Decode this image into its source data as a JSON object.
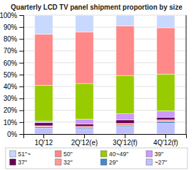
{
  "chart_data": {
    "type": "bar",
    "stacked": true,
    "title": "Quarterly LCD TV panel shipment proportion by size",
    "categories": [
      "1Q'12",
      "2Q'12(e)",
      "3Q'12(f)",
      "4Q'12(f)"
    ],
    "series": [
      {
        "name": "~27\"",
        "color": "#c0c0ff",
        "values": [
          5.0,
          4.0,
          6.0,
          9.0
        ]
      },
      {
        "name": "29\"",
        "color": "#4488cc",
        "values": [
          1.0,
          1.0,
          1.0,
          1.5
        ]
      },
      {
        "name": "32\"",
        "color": "#ff9999",
        "values": [
          1.0,
          1.5,
          2.0,
          1.5
        ]
      },
      {
        "name": "37\"",
        "color": "#660055",
        "values": [
          2.5,
          2.0,
          3.0,
          2.0
        ]
      },
      {
        "name": "39\"",
        "color": "#cc99ff",
        "values": [
          1.5,
          4.0,
          5.0,
          5.5
        ]
      },
      {
        "name": "40~49\"",
        "color": "#99cc00",
        "values": [
          30.0,
          30.0,
          32.0,
          31.0
        ]
      },
      {
        "name": "50\"",
        "color": "#ff8888",
        "values": [
          43.0,
          43.5,
          42.0,
          39.0
        ]
      },
      {
        "name": "51\"~",
        "color": "#c8d8ff",
        "values": [
          16.0,
          14.0,
          9.0,
          10.5
        ]
      }
    ],
    "ylim": [
      0,
      100
    ],
    "yticks": [
      {
        "value": 0,
        "label": "0%"
      },
      {
        "value": 10,
        "label": "10%"
      },
      {
        "value": 20,
        "label": "20%"
      },
      {
        "value": 30,
        "label": "30%"
      },
      {
        "value": 40,
        "label": "40%"
      },
      {
        "value": 50,
        "label": "50%"
      },
      {
        "value": 60,
        "label": "60%"
      },
      {
        "value": 70,
        "label": "70%"
      },
      {
        "value": 80,
        "label": "80%"
      },
      {
        "value": 90,
        "label": "90%"
      },
      {
        "value": 100,
        "label": "100%"
      }
    ],
    "grid": true,
    "legend": "bottom"
  }
}
